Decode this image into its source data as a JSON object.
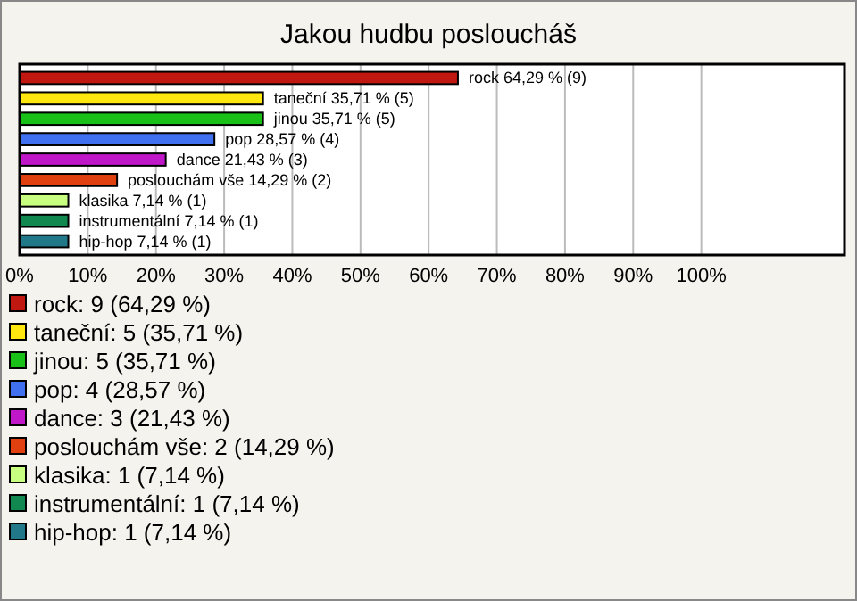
{
  "chart_data": {
    "type": "bar",
    "orientation": "horizontal",
    "title": "Jakou hudbu posloucháš",
    "categories": [
      null,
      null,
      null,
      null,
      null,
      null,
      null,
      null,
      null
    ],
    "values": [
      64.29,
      35.71,
      35.71,
      28.57,
      21.43,
      14.29,
      7.14,
      7.14,
      7.14
    ],
    "value_labels": [
      "rock 64,29 % (9)",
      "taneční 35,71 % (5)",
      "jinou 35,71 % (5)",
      "pop 28,57 % (4)",
      "dance 21,43 % (3)",
      "poslouchám vše 14,29 % (2)",
      "klasika 7,14 % (1)",
      "instrumentální 7,14 % (1)",
      "hip-hop 7,14 % (1)"
    ],
    "colors": [
      "#c01810",
      "#ffe810",
      "#18c018",
      "#4070f0",
      "#c018c8",
      "#e04010",
      "#c8ff80",
      "#108850",
      "#207888"
    ],
    "xlim": [
      0,
      121
    ],
    "xticks": [
      {
        "value": 0,
        "label": "0%"
      },
      {
        "value": 10,
        "label": "10%"
      },
      {
        "value": 20,
        "label": "20%"
      },
      {
        "value": 30,
        "label": "30%"
      },
      {
        "value": 40,
        "label": "40%"
      },
      {
        "value": 50,
        "label": "50%"
      },
      {
        "value": 60,
        "label": "60%"
      },
      {
        "value": 70,
        "label": "70%"
      },
      {
        "value": 80,
        "label": "80%"
      },
      {
        "value": 90,
        "label": "90%"
      },
      {
        "value": 100,
        "label": "100%"
      }
    ],
    "grid": "x",
    "annotations": [
      "rock: 9 (64,29 %)",
      "taneční: 5 (35,71 %)",
      "jinou: 5 (35,71 %)",
      "pop: 4 (28,57 %)",
      "dance: 3 (21,43 %)",
      "poslouchám vše: 2 (14,29 %)",
      "klasika: 1 (7,14 %)",
      "instrumentální: 1 (7,14 %)",
      "hip-hop: 1 (7,14 %)"
    ]
  }
}
